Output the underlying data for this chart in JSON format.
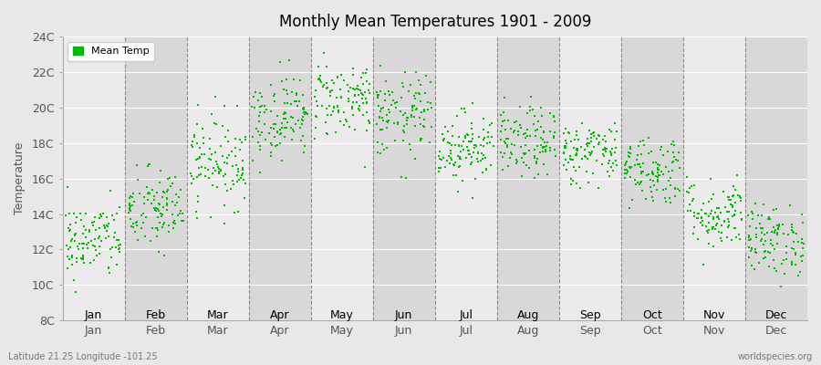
{
  "title": "Monthly Mean Temperatures 1901 - 2009",
  "ylabel": "Temperature",
  "subtitle": "Latitude 21.25 Longitude -101.25",
  "watermark": "worldspecies.org",
  "legend_label": "Mean Temp",
  "marker_color": "#00bb00",
  "background_color": "#e8e8e8",
  "plot_bg_color": "#e8e8e8",
  "band_color_light": "#ebebeb",
  "band_color_dark": "#d8d8d8",
  "ytick_labels": [
    "8C",
    "10C",
    "12C",
    "14C",
    "16C",
    "18C",
    "20C",
    "22C",
    "24C"
  ],
  "ytick_values": [
    8,
    10,
    12,
    14,
    16,
    18,
    20,
    22,
    24
  ],
  "ylim": [
    8,
    24
  ],
  "months": [
    "Jan",
    "Feb",
    "Mar",
    "Apr",
    "May",
    "Jun",
    "Jul",
    "Aug",
    "Sep",
    "Oct",
    "Nov",
    "Dec"
  ],
  "mean_temps": [
    12.5,
    14.2,
    17.0,
    19.5,
    20.5,
    19.5,
    17.8,
    18.0,
    17.5,
    16.5,
    14.0,
    12.5
  ],
  "std_temps": [
    1.1,
    1.2,
    1.3,
    1.2,
    1.1,
    1.2,
    1.0,
    1.0,
    0.9,
    1.0,
    1.0,
    1.0
  ],
  "n_years": 109,
  "seed": 42
}
